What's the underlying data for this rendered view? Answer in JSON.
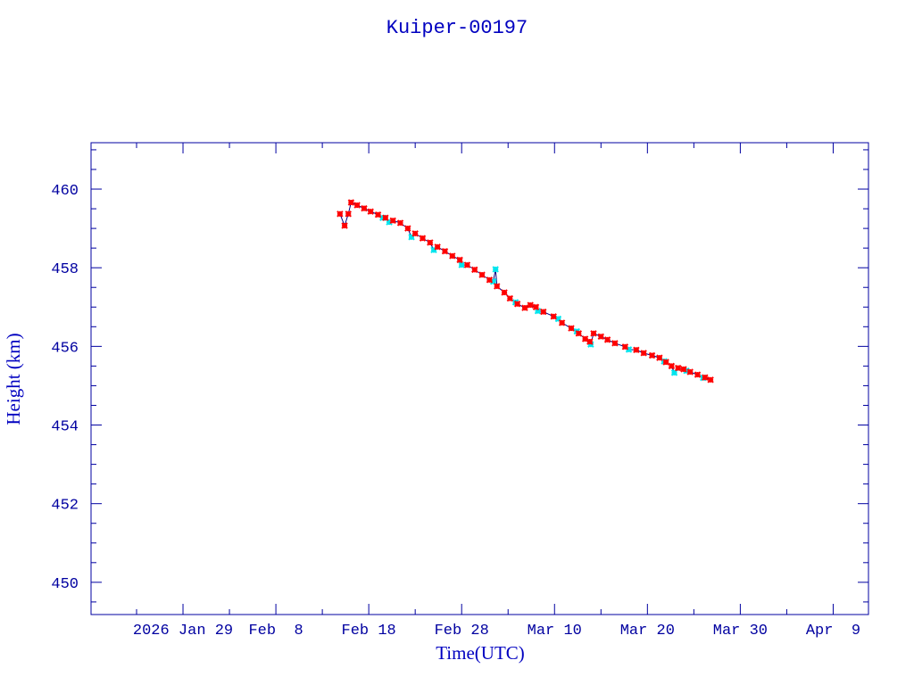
{
  "chart_data": {
    "type": "scatter",
    "title": "Kuiper-00197",
    "xlabel": "Time(UTC)",
    "ylabel": "Height (km)",
    "x_unit": "day of year 2026",
    "xlim": [
      19.1,
      102.8
    ],
    "ylim": [
      449.18,
      461.18
    ],
    "x_ticks": [
      {
        "value": 29,
        "label": "2026 Jan 29"
      },
      {
        "value": 39,
        "label": "Feb  8"
      },
      {
        "value": 49,
        "label": "Feb 18"
      },
      {
        "value": 59,
        "label": "Feb 28"
      },
      {
        "value": 69,
        "label": "Mar 10"
      },
      {
        "value": 79,
        "label": "Mar 20"
      },
      {
        "value": 89,
        "label": "Mar 30"
      },
      {
        "value": 99,
        "label": "Apr  9"
      }
    ],
    "y_ticks": [
      {
        "value": 450,
        "label": "450"
      },
      {
        "value": 452,
        "label": "452"
      },
      {
        "value": 454,
        "label": "454"
      },
      {
        "value": 456,
        "label": "456"
      },
      {
        "value": 458,
        "label": "458"
      },
      {
        "value": 460,
        "label": "460"
      }
    ],
    "colors": {
      "axis": "#0000a0",
      "line": "#000080",
      "main_marker": "#ff0000",
      "alt_marker": "#00e5ee"
    },
    "series": [
      {
        "name": "height",
        "marker": "red-asterisk",
        "x": [
          45.9,
          46.4,
          46.8,
          47.1,
          47.75,
          48.5,
          49.2,
          50.0,
          50.8,
          51.6,
          52.4,
          53.2,
          54.0,
          54.8,
          55.6,
          56.4,
          57.2,
          58.0,
          58.8,
          59.6,
          60.4,
          61.2,
          62.0,
          62.8,
          63.6,
          64.2,
          65.0,
          65.8,
          66.4,
          67.0,
          67.8,
          68.9,
          69.8,
          70.8,
          71.6,
          72.3,
          72.8,
          73.2,
          74.0,
          74.7,
          75.5,
          76.6,
          77.8,
          78.6,
          79.5,
          80.3,
          81.0,
          81.6,
          82.3,
          82.9,
          83.6,
          84.4,
          85.2,
          85.8
        ],
        "y": [
          459.37,
          459.07,
          459.37,
          459.66,
          459.59,
          459.51,
          459.43,
          459.35,
          459.27,
          459.2,
          459.14,
          459.0,
          458.87,
          458.75,
          458.64,
          458.53,
          458.42,
          458.3,
          458.2,
          458.07,
          457.95,
          457.82,
          457.69,
          457.53,
          457.37,
          457.22,
          457.08,
          456.98,
          457.05,
          457.0,
          456.88,
          456.76,
          456.6,
          456.46,
          456.33,
          456.19,
          456.12,
          456.33,
          456.25,
          456.17,
          456.08,
          455.99,
          455.91,
          455.83,
          455.77,
          455.71,
          455.6,
          455.5,
          455.45,
          455.42,
          455.35,
          455.28,
          455.21,
          455.15
        ]
      },
      {
        "name": "height-alt",
        "marker": "cyan-asterisk",
        "x": [
          50.5,
          51.2,
          53.6,
          56.0,
          59.0,
          62.4,
          62.65,
          64.8,
          67.2,
          69.4,
          71.4,
          72.9,
          77.0,
          80.8,
          81.9,
          83.2,
          85.0
        ],
        "y": [
          459.27,
          459.16,
          458.78,
          458.45,
          458.07,
          457.65,
          457.96,
          457.12,
          456.9,
          456.7,
          456.38,
          456.05,
          455.92,
          455.62,
          455.33,
          455.38,
          455.2
        ]
      }
    ]
  }
}
